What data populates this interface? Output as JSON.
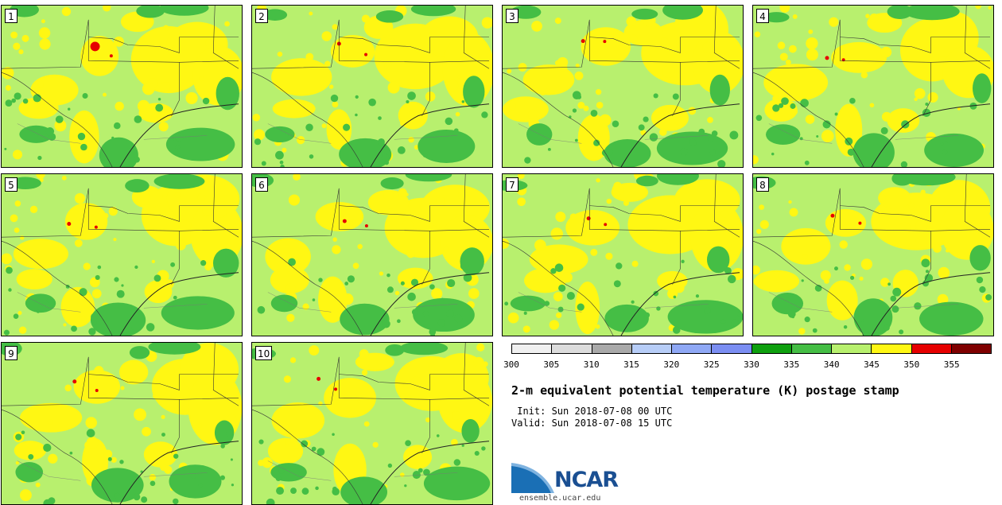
{
  "panels": [
    {
      "label": "1"
    },
    {
      "label": "2"
    },
    {
      "label": "3"
    },
    {
      "label": "4"
    },
    {
      "label": "5"
    },
    {
      "label": "6"
    },
    {
      "label": "7"
    },
    {
      "label": "8"
    },
    {
      "label": "9"
    },
    {
      "label": "10"
    }
  ],
  "colorbar": {
    "colors": [
      "#f0f0f0",
      "#dcdcdc",
      "#a9a9a9",
      "#b7cdf7",
      "#8fa8f5",
      "#7b8ef2",
      "#0fa00f",
      "#45be45",
      "#b8f06e",
      "#fff713",
      "#e60000",
      "#7f0000"
    ],
    "ticks": [
      "300",
      "305",
      "310",
      "315",
      "320",
      "325",
      "330",
      "335",
      "340",
      "345",
      "350",
      "355"
    ]
  },
  "title": "2-m equivalent potential temperature (K) postage stamp",
  "init": " Init: Sun 2018-07-08 00 UTC",
  "valid": "Valid: Sun 2018-07-08 15 UTC",
  "logo": {
    "text": "NCAR",
    "site": "ensemble.ucar.edu",
    "color": "#1a4f92"
  }
}
